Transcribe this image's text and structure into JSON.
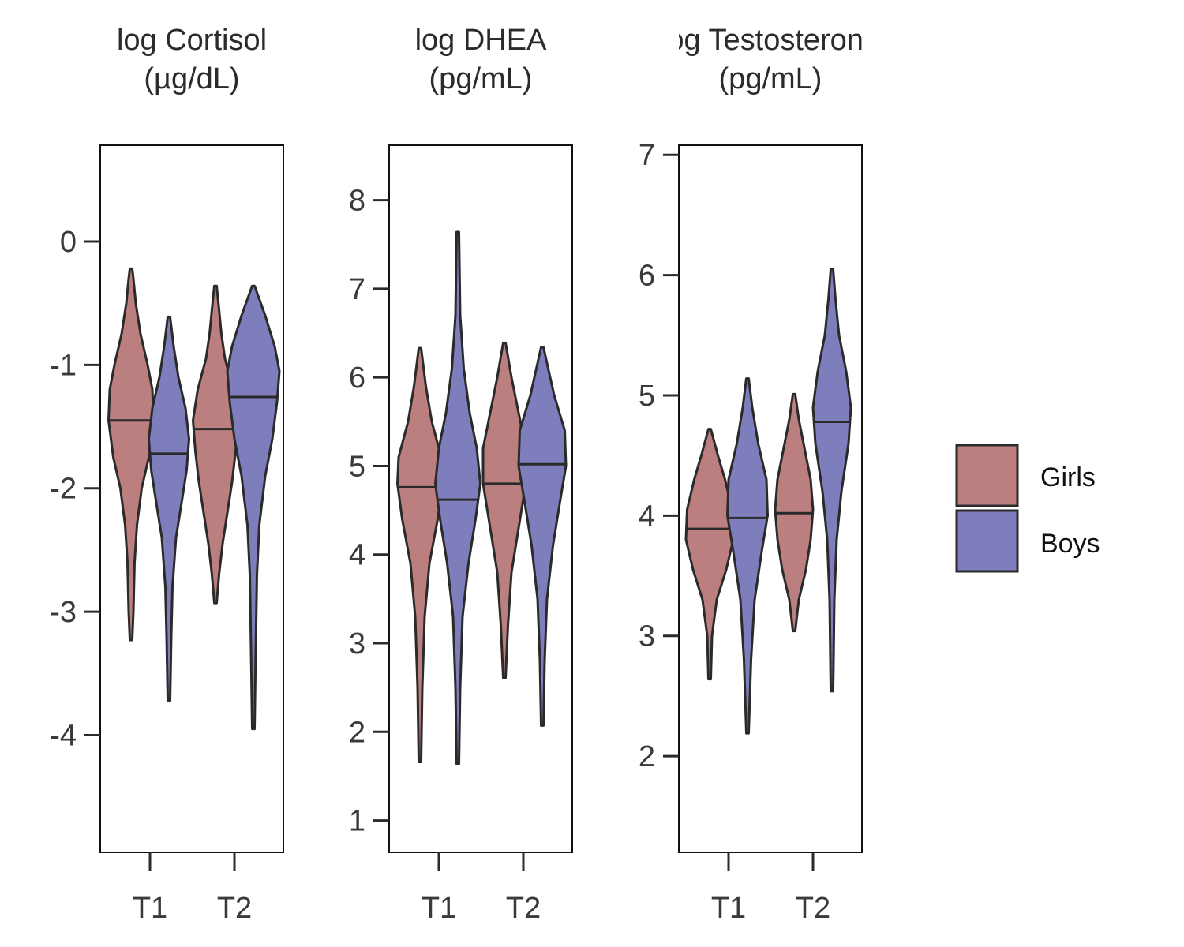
{
  "legend": [
    {
      "label": "Girls",
      "color": "#bc7f7f"
    },
    {
      "label": "Boys",
      "color": "#7e7ebc"
    }
  ],
  "chart_data": [
    {
      "type": "violin",
      "title": "log Cortisol",
      "subtitle": "(µg/dL)",
      "categories": [
        "T1",
        "T2"
      ],
      "ylim": [
        -4.95,
        0.78
      ],
      "yticks": [
        0,
        -1,
        -2,
        -3,
        -4
      ],
      "ytick_labels": [
        "0",
        "-1",
        "-2",
        "-3",
        "-4"
      ],
      "series": [
        {
          "name": "Girls",
          "values": [
            {
              "category": "T1",
              "min": -3.23,
              "max": -0.22,
              "median": -1.45,
              "profile": [
                [
                  -3.23,
                  0.01
                ],
                [
                  -3.0,
                  0.02
                ],
                [
                  -2.6,
                  0.03
                ],
                [
                  -2.3,
                  0.05
                ],
                [
                  -2.0,
                  0.09
                ],
                [
                  -1.75,
                  0.15
                ],
                [
                  -1.45,
                  0.19
                ],
                [
                  -1.2,
                  0.18
                ],
                [
                  -1.0,
                  0.14
                ],
                [
                  -0.75,
                  0.08
                ],
                [
                  -0.5,
                  0.04
                ],
                [
                  -0.3,
                  0.02
                ],
                [
                  -0.22,
                  0.01
                ]
              ]
            },
            {
              "category": "T2",
              "min": -2.93,
              "max": -0.36,
              "median": -1.52,
              "profile": [
                [
                  -2.93,
                  0.01
                ],
                [
                  -2.7,
                  0.03
                ],
                [
                  -2.45,
                  0.06
                ],
                [
                  -2.2,
                  0.1
                ],
                [
                  -1.95,
                  0.14
                ],
                [
                  -1.7,
                  0.17
                ],
                [
                  -1.45,
                  0.19
                ],
                [
                  -1.2,
                  0.15
                ],
                [
                  -0.95,
                  0.08
                ],
                [
                  -0.75,
                  0.05
                ],
                [
                  -0.55,
                  0.03
                ],
                [
                  -0.36,
                  0.01
                ]
              ]
            }
          ]
        },
        {
          "name": "Boys",
          "values": [
            {
              "category": "T1",
              "min": -3.72,
              "max": -0.61,
              "median": -1.72,
              "profile": [
                [
                  -3.72,
                  0.01
                ],
                [
                  -3.2,
                  0.02
                ],
                [
                  -2.8,
                  0.03
                ],
                [
                  -2.4,
                  0.06
                ],
                [
                  -2.1,
                  0.11
                ],
                [
                  -1.85,
                  0.15
                ],
                [
                  -1.6,
                  0.17
                ],
                [
                  -1.35,
                  0.14
                ],
                [
                  -1.1,
                  0.08
                ],
                [
                  -0.85,
                  0.04
                ],
                [
                  -0.61,
                  0.01
                ]
              ]
            },
            {
              "category": "T2",
              "min": -3.95,
              "max": -0.36,
              "median": -1.26,
              "profile": [
                [
                  -3.95,
                  0.01
                ],
                [
                  -3.3,
                  0.02
                ],
                [
                  -2.7,
                  0.03
                ],
                [
                  -2.3,
                  0.05
                ],
                [
                  -1.9,
                  0.1
                ],
                [
                  -1.6,
                  0.16
                ],
                [
                  -1.3,
                  0.2
                ],
                [
                  -1.05,
                  0.22
                ],
                [
                  -0.85,
                  0.18
                ],
                [
                  -0.6,
                  0.1
                ],
                [
                  -0.36,
                  0.01
                ]
              ]
            }
          ]
        }
      ]
    },
    {
      "type": "violin",
      "title": "log DHEA",
      "subtitle": "(pg/mL)",
      "categories": [
        "T1",
        "T2"
      ],
      "ylim": [
        0.64,
        8.62
      ],
      "yticks": [
        8,
        7,
        6,
        5,
        4,
        3,
        2,
        1
      ],
      "ytick_labels": [
        "8",
        "7",
        "6",
        "5",
        "4",
        "3",
        "2",
        "1"
      ],
      "series": [
        {
          "name": "Girls",
          "values": [
            {
              "category": "T1",
              "min": 1.66,
              "max": 6.33,
              "median": 4.76,
              "profile": [
                [
                  1.66,
                  0.01
                ],
                [
                  2.5,
                  0.02
                ],
                [
                  3.3,
                  0.04
                ],
                [
                  3.9,
                  0.08
                ],
                [
                  4.4,
                  0.15
                ],
                [
                  4.8,
                  0.19
                ],
                [
                  5.1,
                  0.18
                ],
                [
                  5.5,
                  0.1
                ],
                [
                  5.9,
                  0.05
                ],
                [
                  6.33,
                  0.01
                ]
              ]
            },
            {
              "category": "T2",
              "min": 2.61,
              "max": 6.39,
              "median": 4.8,
              "profile": [
                [
                  2.61,
                  0.01
                ],
                [
                  3.2,
                  0.03
                ],
                [
                  3.8,
                  0.06
                ],
                [
                  4.3,
                  0.12
                ],
                [
                  4.8,
                  0.18
                ],
                [
                  5.2,
                  0.18
                ],
                [
                  5.6,
                  0.12
                ],
                [
                  6.0,
                  0.06
                ],
                [
                  6.39,
                  0.01
                ]
              ]
            }
          ]
        },
        {
          "name": "Boys",
          "values": [
            {
              "category": "T1",
              "min": 1.64,
              "max": 7.64,
              "median": 4.62,
              "profile": [
                [
                  1.64,
                  0.01
                ],
                [
                  2.5,
                  0.02
                ],
                [
                  3.3,
                  0.04
                ],
                [
                  3.9,
                  0.09
                ],
                [
                  4.4,
                  0.15
                ],
                [
                  4.8,
                  0.19
                ],
                [
                  5.2,
                  0.16
                ],
                [
                  5.6,
                  0.1
                ],
                [
                  6.1,
                  0.05
                ],
                [
                  6.7,
                  0.02
                ],
                [
                  7.64,
                  0.01
                ]
              ]
            },
            {
              "category": "T2",
              "min": 2.07,
              "max": 6.34,
              "median": 5.02,
              "profile": [
                [
                  2.07,
                  0.01
                ],
                [
                  2.8,
                  0.02
                ],
                [
                  3.5,
                  0.04
                ],
                [
                  4.1,
                  0.09
                ],
                [
                  4.6,
                  0.15
                ],
                [
                  5.0,
                  0.2
                ],
                [
                  5.4,
                  0.19
                ],
                [
                  5.8,
                  0.1
                ],
                [
                  6.1,
                  0.05
                ],
                [
                  6.34,
                  0.01
                ]
              ]
            }
          ]
        }
      ]
    },
    {
      "type": "violin",
      "title": "log Testosterone",
      "subtitle": "(pg/mL)",
      "categories": [
        "T1",
        "T2"
      ],
      "ylim": [
        1.2,
        7.08
      ],
      "yticks": [
        7,
        6,
        5,
        4,
        3,
        2
      ],
      "ytick_labels": [
        "7",
        "6",
        "5",
        "4",
        "3",
        "2"
      ],
      "series": [
        {
          "name": "Girls",
          "values": [
            {
              "category": "T1",
              "min": 2.64,
              "max": 4.72,
              "median": 3.89,
              "profile": [
                [
                  2.64,
                  0.01
                ],
                [
                  3.0,
                  0.02
                ],
                [
                  3.3,
                  0.06
                ],
                [
                  3.55,
                  0.14
                ],
                [
                  3.8,
                  0.2
                ],
                [
                  4.05,
                  0.19
                ],
                [
                  4.3,
                  0.13
                ],
                [
                  4.5,
                  0.07
                ],
                [
                  4.72,
                  0.01
                ]
              ]
            },
            {
              "category": "T2",
              "min": 3.04,
              "max": 5.01,
              "median": 4.02,
              "profile": [
                [
                  3.04,
                  0.01
                ],
                [
                  3.3,
                  0.04
                ],
                [
                  3.55,
                  0.1
                ],
                [
                  3.8,
                  0.14
                ],
                [
                  4.05,
                  0.16
                ],
                [
                  4.3,
                  0.14
                ],
                [
                  4.55,
                  0.09
                ],
                [
                  4.8,
                  0.04
                ],
                [
                  5.01,
                  0.01
                ]
              ]
            }
          ]
        },
        {
          "name": "Boys",
          "values": [
            {
              "category": "T1",
              "min": 2.19,
              "max": 5.14,
              "median": 3.98,
              "profile": [
                [
                  2.19,
                  0.01
                ],
                [
                  2.8,
                  0.03
                ],
                [
                  3.3,
                  0.06
                ],
                [
                  3.7,
                  0.12
                ],
                [
                  4.0,
                  0.17
                ],
                [
                  4.3,
                  0.16
                ],
                [
                  4.6,
                  0.09
                ],
                [
                  4.9,
                  0.04
                ],
                [
                  5.14,
                  0.01
                ]
              ]
            },
            {
              "category": "T2",
              "min": 2.54,
              "max": 6.05,
              "median": 4.78,
              "profile": [
                [
                  2.54,
                  0.01
                ],
                [
                  3.3,
                  0.02
                ],
                [
                  3.8,
                  0.04
                ],
                [
                  4.2,
                  0.08
                ],
                [
                  4.6,
                  0.14
                ],
                [
                  4.9,
                  0.16
                ],
                [
                  5.2,
                  0.12
                ],
                [
                  5.5,
                  0.06
                ],
                [
                  5.8,
                  0.03
                ],
                [
                  6.05,
                  0.01
                ]
              ]
            }
          ]
        }
      ]
    }
  ]
}
